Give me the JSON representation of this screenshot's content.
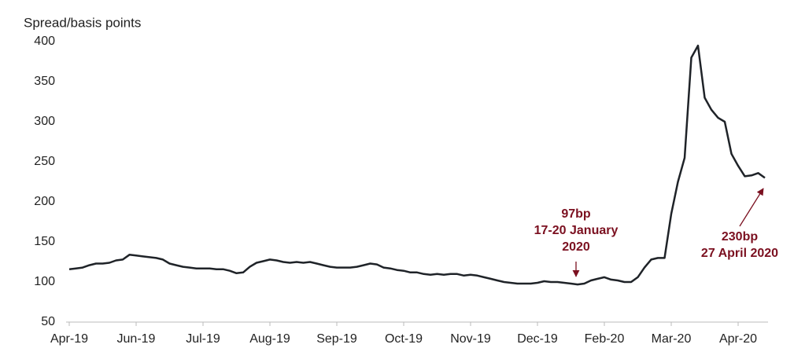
{
  "chart_data": {
    "type": "line",
    "y_label": "Spread/basis points",
    "categories": [
      "Apr-19",
      null,
      null,
      null,
      null,
      null,
      null,
      null,
      null,
      null,
      "Jun-19",
      null,
      null,
      null,
      null,
      null,
      null,
      null,
      null,
      null,
      "Jul-19",
      null,
      null,
      null,
      null,
      null,
      null,
      null,
      null,
      null,
      "Aug-19",
      null,
      null,
      null,
      null,
      null,
      null,
      null,
      null,
      null,
      "Sep-19",
      null,
      null,
      null,
      null,
      null,
      null,
      null,
      null,
      null,
      "Oct-19",
      null,
      null,
      null,
      null,
      null,
      null,
      null,
      null,
      null,
      "Nov-19",
      null,
      null,
      null,
      null,
      null,
      null,
      null,
      null,
      null,
      "Dec-19",
      null,
      null,
      null,
      null,
      null,
      null,
      null,
      null,
      null,
      "Feb-20",
      null,
      null,
      null,
      null,
      null,
      null,
      null,
      null,
      null,
      "Mar-20",
      null,
      null,
      null,
      null,
      null,
      null,
      null,
      null,
      null,
      "Apr-20",
      null,
      null,
      null,
      null
    ],
    "values": [
      116,
      117,
      118,
      121,
      123,
      123,
      124,
      127,
      128,
      134,
      133,
      132,
      131,
      130,
      128,
      123,
      121,
      119,
      118,
      117,
      117,
      117,
      116,
      116,
      114,
      111,
      112,
      119,
      124,
      126,
      128,
      127,
      125,
      124,
      125,
      124,
      125,
      123,
      121,
      119,
      118,
      118,
      118,
      119,
      121,
      123,
      122,
      118,
      117,
      115,
      114,
      112,
      112,
      110,
      109,
      110,
      109,
      110,
      110,
      108,
      109,
      108,
      106,
      104,
      102,
      100,
      99,
      98,
      98,
      98,
      99,
      101,
      100,
      100,
      99,
      98,
      97,
      98,
      102,
      104,
      106,
      103,
      102,
      100,
      100,
      106,
      118,
      128,
      130,
      130,
      185,
      225,
      255,
      380,
      395,
      330,
      315,
      305,
      300,
      260,
      245,
      232,
      233,
      236,
      230
    ],
    "color": "#1f2328",
    "ylim": [
      50,
      400
    ],
    "yticks": [
      50,
      100,
      150,
      200,
      250,
      300,
      350,
      400
    ],
    "annotations": [
      {
        "lines": [
          "97bp",
          "17-20 January",
          "2020"
        ]
      },
      {
        "lines": [
          "230bp",
          "27 April 2020"
        ]
      }
    ]
  }
}
